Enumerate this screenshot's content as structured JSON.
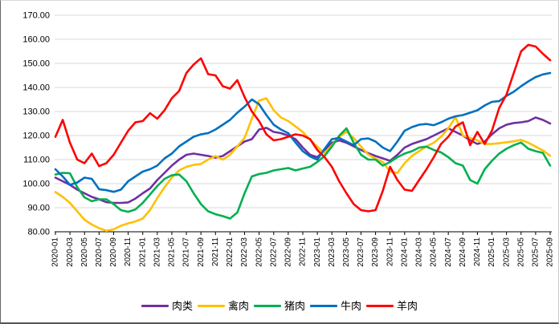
{
  "chart_data": {
    "type": "line",
    "title": "",
    "xlabel": "",
    "ylabel": "",
    "ylim": [
      80,
      170
    ],
    "y_tick_step": 10,
    "grid": "horizontal",
    "legend_position": "bottom-center",
    "x_monthly_range": {
      "from": "2020-01",
      "to": "2025-09",
      "points": 69
    },
    "x_tick_labels": [
      "2020-01",
      "2020-03",
      "2020-05",
      "2020-07",
      "2020-09",
      "2020-11",
      "2021-01",
      "2021-03",
      "2021-05",
      "2021-07",
      "2021-09",
      "2021-11",
      "2022-01",
      "2022-03",
      "2022-05",
      "2022-07",
      "2022-09",
      "2022-11",
      "2023-01",
      "2023-03",
      "2023-05",
      "2023-07",
      "2023-09",
      "2023-11",
      "2024-01",
      "2024-03",
      "2024-05",
      "2024-07",
      "2024-09",
      "2024-11",
      "2025-01",
      "2025-03",
      "2025-05",
      "2025-07",
      "2025-09"
    ],
    "y_tick_labels": [
      "170.00",
      "160.00",
      "150.00",
      "140.00",
      "130.00",
      "120.00",
      "110.00",
      "100.00",
      "90.00",
      "80.00"
    ],
    "series": [
      {
        "name": "肉类",
        "color": "#7030A0",
        "values": [
          102.5,
          101,
          99.5,
          97.5,
          96,
          94.5,
          93.5,
          92.3,
          92,
          92,
          92.2,
          93.8,
          96,
          98,
          101.5,
          104.5,
          107.5,
          110,
          112,
          112.5,
          112,
          111.5,
          110.8,
          111.5,
          113.5,
          115.5,
          117.5,
          118.5,
          122.5,
          123.2,
          121.5,
          121,
          120,
          118.5,
          115,
          112,
          111,
          114,
          117,
          118,
          117,
          115.5,
          114,
          112.7,
          111.5,
          110.5,
          109.5,
          112,
          115,
          116.5,
          117.5,
          118.5,
          120,
          121.5,
          123,
          121.5,
          120,
          118,
          116.5,
          117.5,
          120.5,
          123,
          124.5,
          125.2,
          125.5,
          126,
          127.5,
          126.5,
          125
        ]
      },
      {
        "name": "禽肉",
        "color": "#FFC000",
        "values": [
          96.5,
          94.5,
          92,
          88.5,
          85,
          83,
          81.5,
          80.4,
          81,
          82.5,
          83.5,
          84.3,
          85.5,
          89,
          94,
          98.5,
          102.5,
          105.5,
          107,
          107.8,
          108.2,
          110,
          111.5,
          110,
          112,
          115.5,
          119,
          127,
          134.5,
          135.5,
          130.5,
          127.5,
          126,
          123.8,
          121.5,
          118.2,
          115.4,
          112.5,
          116,
          119.5,
          121.6,
          119,
          115.4,
          112.1,
          110.4,
          109,
          105,
          104.5,
          108.5,
          111.5,
          113.5,
          115.5,
          117,
          119.5,
          123,
          127.7,
          120,
          119,
          118,
          116.5,
          116.5,
          116.8,
          117.2,
          117.6,
          118.2,
          117,
          115.4,
          113.8,
          111.6
        ]
      },
      {
        "name": "猪肉",
        "color": "#00B050",
        "values": [
          103.8,
          104.5,
          104.3,
          98.5,
          94.3,
          92.7,
          93.5,
          93.5,
          91.5,
          89,
          88.3,
          89.3,
          92,
          95.5,
          99,
          102,
          103.5,
          103.8,
          101,
          96,
          91.5,
          88.5,
          87.3,
          86.5,
          85.5,
          88,
          96,
          103,
          104,
          104.5,
          105.5,
          106,
          106.5,
          105.5,
          106.3,
          107,
          109,
          111.5,
          115.4,
          119.9,
          123,
          117,
          112,
          110,
          110,
          107.5,
          109,
          111,
          112.5,
          113.5,
          115,
          115.4,
          114,
          113,
          111,
          108.5,
          107.5,
          101.5,
          100,
          106,
          109.5,
          112.5,
          114.5,
          116,
          117.1,
          114.5,
          113.5,
          112.8,
          107.5
        ]
      },
      {
        "name": "牛肉",
        "color": "#0070C0",
        "values": [
          106,
          103,
          99.5,
          100.5,
          102.5,
          102,
          97.7,
          97.3,
          96.6,
          97.5,
          101,
          103,
          105,
          106,
          107.5,
          110.5,
          112.5,
          115.5,
          117.5,
          119.5,
          120.5,
          121,
          122.5,
          124.5,
          126.5,
          129.5,
          132,
          135,
          133,
          128.5,
          124.5,
          122.5,
          121,
          117.1,
          113.5,
          111.3,
          110,
          114.5,
          118.5,
          119,
          117.5,
          116,
          118.5,
          118.8,
          117.5,
          115,
          113.5,
          117.5,
          122,
          123.5,
          124.5,
          124.8,
          124.3,
          125.5,
          127,
          128,
          128.5,
          129.5,
          130.5,
          132.5,
          134,
          134.3,
          136.5,
          138.2,
          140.5,
          142.5,
          144.3,
          145.4,
          146
        ]
      },
      {
        "name": "羊肉",
        "color": "#FF0000",
        "values": [
          119.5,
          126.5,
          117,
          110,
          108.5,
          112.5,
          107.3,
          108.5,
          112,
          117,
          122,
          125.5,
          126,
          129.3,
          127,
          130.5,
          135.5,
          138.5,
          146,
          149.5,
          152.1,
          145.5,
          145,
          140.5,
          139.5,
          143,
          136,
          130,
          126,
          120.5,
          118,
          118.5,
          119.5,
          120.5,
          120,
          118.5,
          114,
          111,
          107,
          101,
          96,
          91.5,
          89,
          88.5,
          89,
          97,
          107,
          101.5,
          97.5,
          97,
          101.5,
          106,
          111,
          116.5,
          119.5,
          123.8,
          125.5,
          116,
          121.5,
          116.5,
          122,
          131.5,
          137,
          146,
          155,
          157.7,
          157,
          154,
          151.3
        ]
      }
    ],
    "colors": {
      "grid": "#d9d9d9",
      "axis": "#000000",
      "background": "#ffffff"
    }
  }
}
